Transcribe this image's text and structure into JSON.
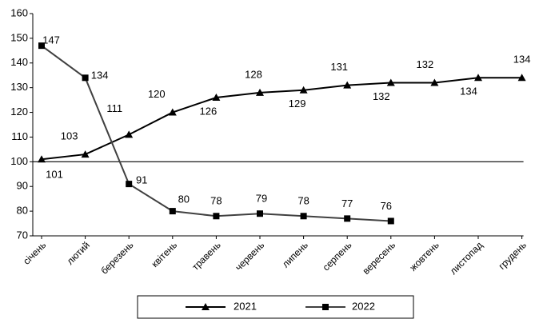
{
  "chart_data": {
    "type": "line",
    "categories": [
      "січень",
      "лютий",
      "березень",
      "квітень",
      "травень",
      "червень",
      "липень",
      "серпень",
      "вересень",
      "жовтень",
      "листопад",
      "грудень"
    ],
    "series": [
      {
        "name": "2021",
        "color": "#000000",
        "marker": "triangle",
        "values": [
          101,
          103,
          111,
          120,
          126,
          128,
          129,
          131,
          132,
          132,
          134,
          134
        ]
      },
      {
        "name": "2022",
        "color": "#404040",
        "marker": "square",
        "values": [
          147,
          134,
          91,
          80,
          78,
          79,
          78,
          77,
          76,
          null,
          null,
          null
        ]
      }
    ],
    "ylim": [
      70,
      160
    ],
    "yticks": [
      70,
      80,
      90,
      100,
      110,
      120,
      130,
      140,
      150,
      160
    ],
    "reference_line": 100,
    "grid": false,
    "legend": "bottom"
  }
}
